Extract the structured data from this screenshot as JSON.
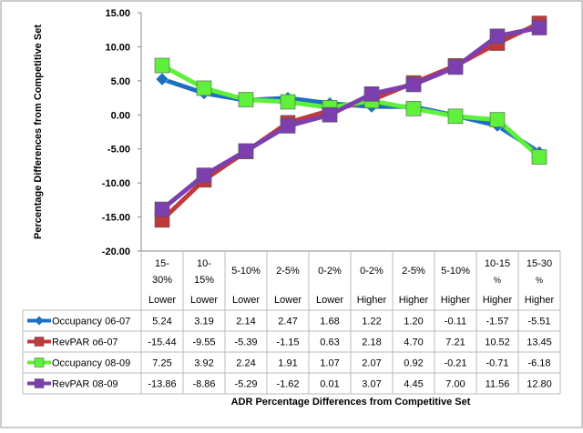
{
  "chart_data": {
    "type": "line",
    "ylabel": "Percentage Differences from Competitive Set",
    "xlabel": "ADR Percentage Differences from Competitive Set",
    "ylim": [
      -20,
      15
    ],
    "yticks": [
      "15.00",
      "10.00",
      "5.00",
      "0.00",
      "-5.00",
      "-10.00",
      "-15.00",
      "-20.00"
    ],
    "ytick_values": [
      15,
      10,
      5,
      0,
      -5,
      -10,
      -15,
      -20
    ],
    "categories": [
      {
        "range": [
          "15-",
          "30%"
        ],
        "dir": "Lower"
      },
      {
        "range": [
          "10-",
          "15%"
        ],
        "dir": "Lower"
      },
      {
        "range": [
          "5-10%"
        ],
        "dir": "Lower"
      },
      {
        "range": [
          "2-5%"
        ],
        "dir": "Lower"
      },
      {
        "range": [
          "0-2%"
        ],
        "dir": "Lower"
      },
      {
        "range": [
          "0-2%"
        ],
        "dir": "Higher"
      },
      {
        "range": [
          "2-5%"
        ],
        "dir": "Higher"
      },
      {
        "range": [
          "5-10%"
        ],
        "dir": "Higher"
      },
      {
        "range": [
          "10-15",
          "%"
        ],
        "dir": "Higher"
      },
      {
        "range": [
          "15-30",
          "%"
        ],
        "dir": "Higher"
      }
    ],
    "series": [
      {
        "name": "Occupancy 06-07",
        "color": "#1f6fc0",
        "marker": "diamond",
        "values": [
          "5.24",
          "3.19",
          "2.14",
          "2.47",
          "1.68",
          "1.22",
          "1.20",
          "-0.11",
          "-1.57",
          "-5.51"
        ]
      },
      {
        "name": "RevPAR o6-07",
        "color": "#c0393b",
        "marker": "square",
        "values": [
          "-15.44",
          "-9.55",
          "-5.39",
          "-1.15",
          "0.63",
          "2.18",
          "4.70",
          "7.21",
          "10.52",
          "13.45"
        ]
      },
      {
        "name": "Occupancy 08-09",
        "color": "#5ef03a",
        "marker": "square",
        "values": [
          "7.25",
          "3.92",
          "2.24",
          "1.91",
          "1.07",
          "2.07",
          "0.92",
          "-0.21",
          "-0.71",
          "-6.18"
        ]
      },
      {
        "name": "RevPAR 08-09",
        "color": "#7d3fb0",
        "marker": "square",
        "values": [
          "-13.86",
          "-8.86",
          "-5.29",
          "-1.62",
          "0.01",
          "3.07",
          "4.45",
          "7.00",
          "11.56",
          "12.80"
        ]
      }
    ]
  }
}
